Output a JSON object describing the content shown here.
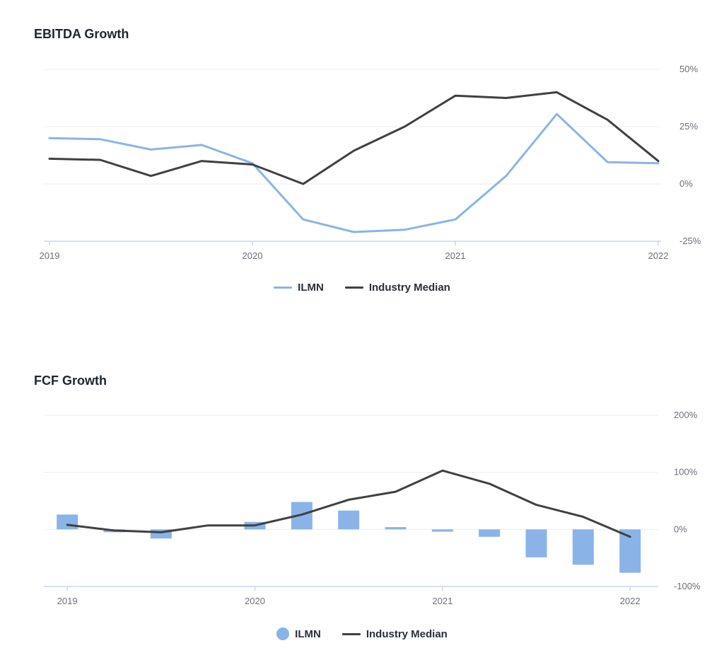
{
  "chart_data": [
    {
      "type": "line",
      "title": "EBITDA Growth",
      "x_ticks": [
        "2019",
        "2020",
        "2021",
        "2022"
      ],
      "y_ticks": [
        "50%",
        "25%",
        "0%",
        "-25%"
      ],
      "ylim": [
        -25,
        50
      ],
      "xlim": [
        2019.0,
        2022.0
      ],
      "y_axis_position": "right",
      "grid": true,
      "legend_position": "bottom",
      "series": [
        {
          "name": "ILMN",
          "color": "#8ab4e8",
          "x": [
            2019.0,
            2019.25,
            2019.5,
            2019.75,
            2020.0,
            2020.25,
            2020.5,
            2020.75,
            2021.0,
            2021.25,
            2021.5,
            2021.75,
            2022.0
          ],
          "y": [
            20,
            19.5,
            15,
            17,
            9,
            -15.5,
            -21,
            -20,
            -15.5,
            3.5,
            30.5,
            9.5,
            9
          ]
        },
        {
          "name": "Industry Median",
          "color": "#404040",
          "x": [
            2019.0,
            2019.25,
            2019.5,
            2019.75,
            2020.0,
            2020.25,
            2020.5,
            2020.75,
            2021.0,
            2021.25,
            2021.5,
            2021.75,
            2022.0
          ],
          "y": [
            11,
            10.5,
            3.5,
            10,
            8.5,
            0,
            14.5,
            25,
            38.5,
            37.5,
            40,
            28,
            10
          ]
        }
      ]
    },
    {
      "type": "bar",
      "title": "FCF Growth",
      "x_ticks": [
        "2019",
        "2020",
        "2021",
        "2022"
      ],
      "y_ticks": [
        "200%",
        "100%",
        "0%",
        "-100%"
      ],
      "ylim": [
        -100,
        200
      ],
      "xlim": [
        2018.875,
        2022.15
      ],
      "y_axis_position": "right",
      "grid": true,
      "legend_position": "bottom",
      "series": [
        {
          "name": "ILMN",
          "type": "bar",
          "color": "#8ab4e8",
          "x": [
            2019.0,
            2019.25,
            2019.5,
            2019.75,
            2020.0,
            2020.25,
            2020.5,
            2020.75,
            2021.0,
            2021.25,
            2021.5,
            2021.75,
            2022.0
          ],
          "y": [
            26,
            -5,
            -16,
            0,
            13,
            48,
            33,
            4,
            -4,
            -13,
            -49,
            -62,
            -76
          ]
        },
        {
          "name": "Industry Median",
          "type": "line",
          "color": "#404040",
          "x": [
            2019.0,
            2019.25,
            2019.5,
            2019.75,
            2020.0,
            2020.25,
            2020.5,
            2020.75,
            2021.0,
            2021.25,
            2021.5,
            2021.75,
            2022.0
          ],
          "y": [
            8,
            -2,
            -5,
            7,
            7,
            26,
            52,
            66,
            103,
            80,
            43,
            22,
            -13
          ]
        }
      ]
    }
  ]
}
